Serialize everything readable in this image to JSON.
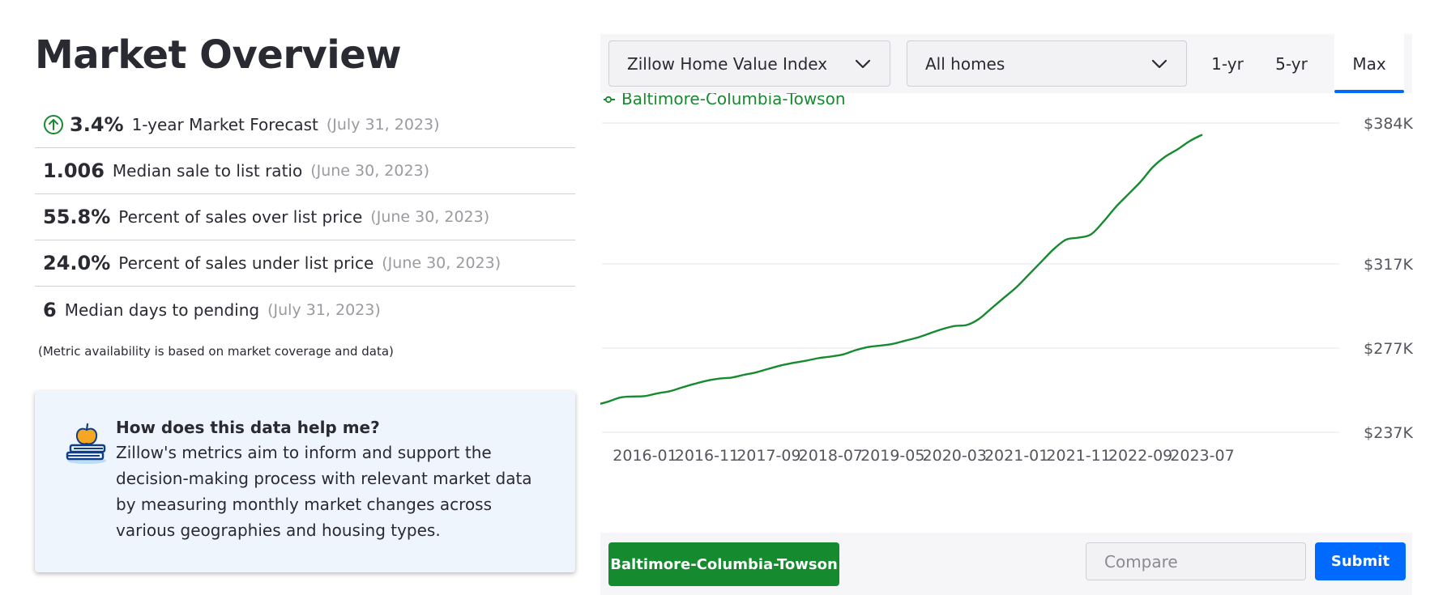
{
  "page": {
    "title": "Market Overview"
  },
  "metrics": [
    {
      "value": "3.4%",
      "label": "1-year Market Forecast",
      "date": "(July 31, 2023)",
      "icon": "arrow-up-circle-icon"
    },
    {
      "value": "1.006",
      "label": "Median sale to list ratio",
      "date": "(June 30, 2023)"
    },
    {
      "value": "55.8%",
      "label": "Percent of sales over list price",
      "date": "(June 30, 2023)"
    },
    {
      "value": "24.0%",
      "label": "Percent of sales under list price",
      "date": "(June 30, 2023)"
    },
    {
      "value": "6",
      "label": "Median days to pending",
      "date": "(July 31, 2023)"
    }
  ],
  "metrics_note": "(Metric availability is based on market coverage and data)",
  "help": {
    "icon": "books-apple-icon",
    "title": "How does this data help me?",
    "body": "Zillow's metrics aim to inform and support the decision-making process with relevant market data by measuring monthly market changes across various geographies and housing types."
  },
  "controls": {
    "index_select": "Zillow Home Value Index",
    "homes_select": "All homes",
    "ranges": [
      "1-yr",
      "5-yr",
      "Max"
    ],
    "active_range": "Max"
  },
  "colors": {
    "series": "#168a2f",
    "accent": "#006aff",
    "gridline": "#e6e6ea"
  },
  "chart_data": {
    "type": "line",
    "legend": "Baltimore-Columbia-Towson",
    "legend_position": "top-left",
    "grid": true,
    "y_ticks": [
      "$384K",
      "$317K",
      "$277K",
      "$237K"
    ],
    "y_tick_values": [
      384,
      317,
      277,
      237
    ],
    "x_ticks": [
      "2016-01",
      "2016-11",
      "2017-09",
      "2018-07",
      "2019-05",
      "2020-03",
      "2021-01",
      "2021-11",
      "2022-09",
      "2023-07"
    ],
    "y_unit": "$K",
    "series": [
      {
        "name": "Baltimore-Columbia-Towson",
        "points": [
          [
            "2015-03",
            249
          ],
          [
            "2015-05",
            250
          ],
          [
            "2015-07",
            251.5
          ],
          [
            "2015-09",
            253.5
          ],
          [
            "2015-11",
            254
          ],
          [
            "2016-01",
            254.2
          ],
          [
            "2016-03",
            255.5
          ],
          [
            "2016-05",
            256.5
          ],
          [
            "2016-07",
            258.3
          ],
          [
            "2016-09",
            260
          ],
          [
            "2016-11",
            261.5
          ],
          [
            "2017-01",
            262.5
          ],
          [
            "2017-03",
            263
          ],
          [
            "2017-05",
            264.3
          ],
          [
            "2017-07",
            265.5
          ],
          [
            "2017-09",
            267.2
          ],
          [
            "2017-11",
            268.8
          ],
          [
            "2018-01",
            270
          ],
          [
            "2018-03",
            271
          ],
          [
            "2018-05",
            272.2
          ],
          [
            "2018-07",
            273
          ],
          [
            "2018-09",
            274
          ],
          [
            "2018-11",
            276
          ],
          [
            "2019-01",
            277.5
          ],
          [
            "2019-03",
            278.2
          ],
          [
            "2019-05",
            279
          ],
          [
            "2019-07",
            280.5
          ],
          [
            "2019-09",
            282
          ],
          [
            "2019-11",
            284
          ],
          [
            "2020-01",
            286
          ],
          [
            "2020-03",
            287.5
          ],
          [
            "2020-05",
            288
          ],
          [
            "2020-07",
            291
          ],
          [
            "2020-09",
            296
          ],
          [
            "2020-11",
            301
          ],
          [
            "2021-01",
            306
          ],
          [
            "2021-03",
            312
          ],
          [
            "2021-05",
            318
          ],
          [
            "2021-07",
            324
          ],
          [
            "2021-09",
            328.5
          ],
          [
            "2021-11",
            329.5
          ],
          [
            "2022-01",
            331
          ],
          [
            "2022-03",
            337
          ],
          [
            "2022-05",
            344
          ],
          [
            "2022-07",
            350
          ],
          [
            "2022-09",
            356
          ],
          [
            "2022-11",
            363
          ],
          [
            "2023-01",
            368
          ],
          [
            "2023-03",
            371.5
          ],
          [
            "2023-05",
            375.5
          ],
          [
            "2023-07",
            378.5
          ]
        ]
      }
    ]
  },
  "bottom": {
    "region_chip": "Baltimore-Columbia-Towson",
    "compare_placeholder": "Compare",
    "submit_label": "Submit"
  }
}
